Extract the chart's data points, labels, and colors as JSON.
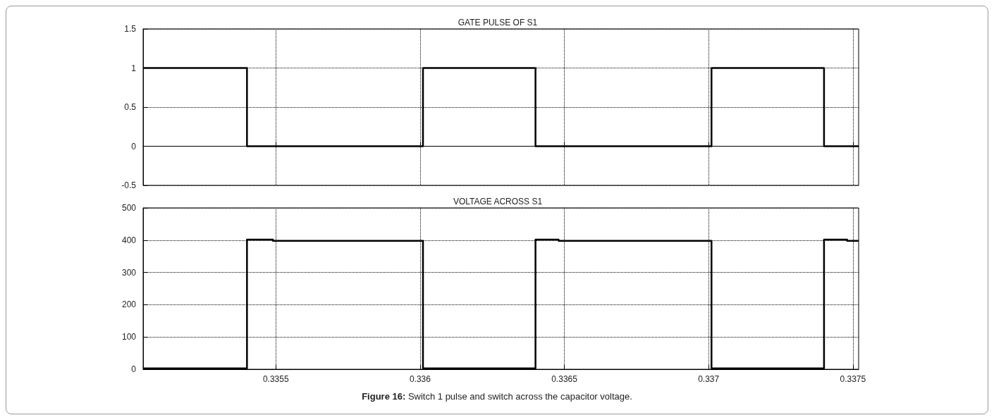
{
  "chart_data": [
    {
      "type": "step",
      "title": "GATE PULSE OF S1",
      "tick_labels": "y",
      "grid": true,
      "xlim": [
        0.33504,
        0.33752
      ],
      "xticks": [
        0.3355,
        0.336,
        0.3365,
        0.337,
        0.3375
      ],
      "ylim": [
        -0.5,
        1.5
      ],
      "yticks": [
        -0.5,
        0,
        0.5,
        1,
        1.5
      ],
      "series": [
        {
          "color": "#000000",
          "x": [
            0.33504,
            0.3354,
            0.33601,
            0.3364,
            0.33701,
            0.3374,
            0.33752
          ],
          "values": [
            1,
            0,
            1,
            0,
            1,
            0,
            0
          ]
        }
      ]
    },
    {
      "type": "step",
      "title": "VOLTAGE ACROSS S1",
      "grid": true,
      "xlim": [
        0.33504,
        0.33752
      ],
      "xticks": [
        0.3355,
        0.336,
        0.3365,
        0.337,
        0.3375
      ],
      "ylim": [
        0,
        500
      ],
      "yticks": [
        0,
        100,
        200,
        300,
        400,
        500
      ],
      "series": [
        {
          "color": "#000000",
          "x": [
            0.33504,
            0.3354,
            0.33549,
            0.33601,
            0.3364,
            0.33648,
            0.33701,
            0.3374,
            0.33748,
            0.33752
          ],
          "values": [
            3,
            402,
            398,
            3,
            402,
            398,
            3,
            402,
            398,
            398
          ]
        }
      ],
      "annotations": [
        "Figure 16: Switch 1 pulse and switch across the capacitor voltage."
      ]
    }
  ]
}
